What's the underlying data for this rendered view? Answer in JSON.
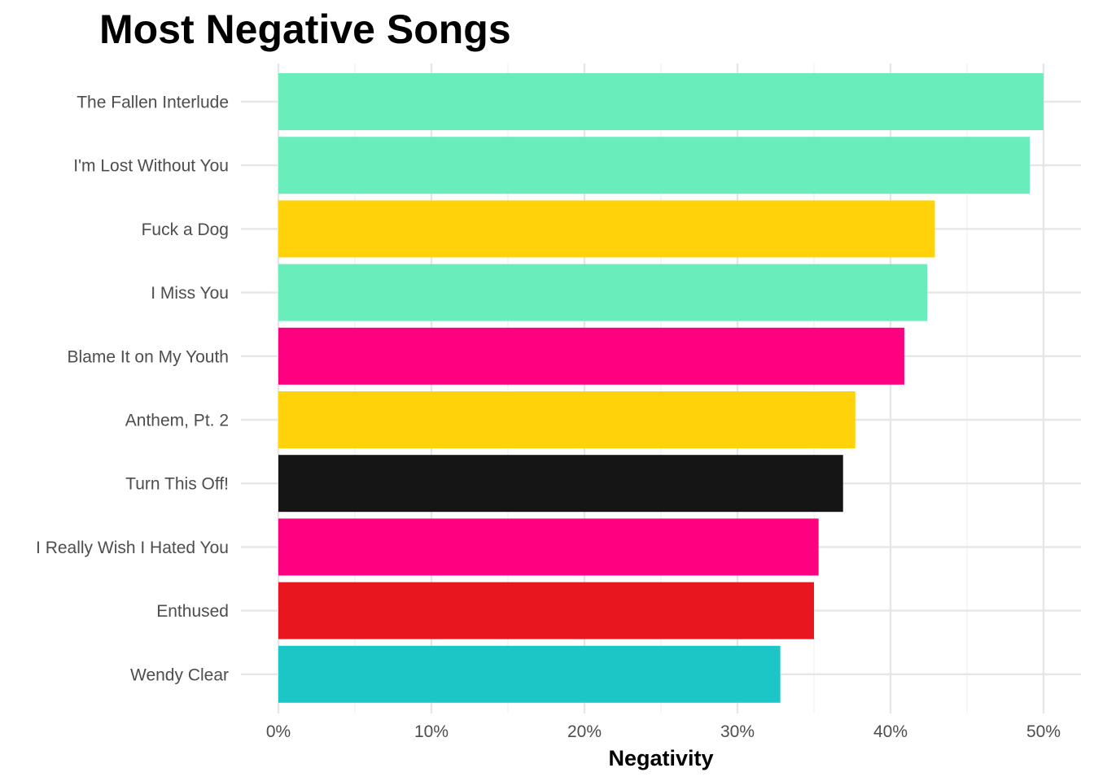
{
  "chart_data": {
    "type": "bar",
    "orientation": "horizontal",
    "title": "Most Negative Songs",
    "xlabel": "Negativity",
    "ylabel": "",
    "xlim": [
      0,
      0.5
    ],
    "x_ticks": [
      0,
      0.1,
      0.2,
      0.3,
      0.4,
      0.5
    ],
    "x_tick_labels": [
      "0%",
      "10%",
      "20%",
      "30%",
      "40%",
      "50%"
    ],
    "grid": true,
    "legend": "none",
    "categories": [
      "The Fallen Interlude",
      "I'm Lost Without You",
      "Fuck a Dog",
      "I Miss You",
      "Blame It on My Youth",
      "Anthem, Pt. 2",
      "Turn This Off!",
      "I Really Wish I Hated You",
      "Enthused",
      "Wendy Clear"
    ],
    "values": [
      0.5,
      0.491,
      0.429,
      0.424,
      0.409,
      0.377,
      0.369,
      0.353,
      0.35,
      0.328
    ],
    "colors": [
      "#69EDBB",
      "#69EDBB",
      "#FFD20A",
      "#69EDBB",
      "#FF0080",
      "#FFD20A",
      "#151515",
      "#FF0080",
      "#E8161F",
      "#1DC6C6"
    ]
  }
}
